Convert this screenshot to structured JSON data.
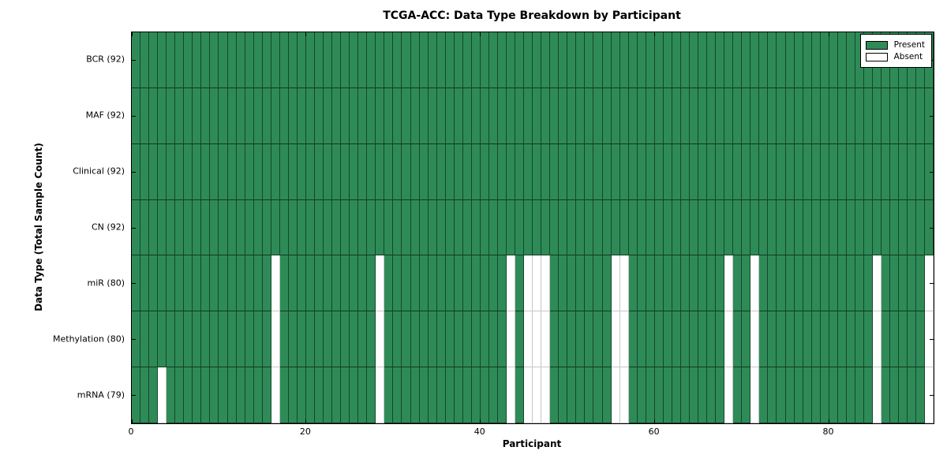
{
  "chart_data": {
    "type": "heatmap",
    "title": "TCGA-ACC: Data Type Breakdown by Participant",
    "xlabel": "Participant",
    "ylabel": "Data Type (Total Sample Count)",
    "x_range": [
      0,
      92
    ],
    "n_participants": 92,
    "x_ticks": [
      0,
      20,
      40,
      60,
      80
    ],
    "colors": {
      "present": "#2e8b57",
      "absent": "#ffffff"
    },
    "legend": [
      {
        "label": "Present",
        "color": "#2e8b57"
      },
      {
        "label": "Absent",
        "color": "#ffffff"
      }
    ],
    "legend_position": "upper right",
    "grid": false,
    "rows": [
      {
        "label": "BCR (92)",
        "total": 92,
        "absent_participants": []
      },
      {
        "label": "MAF (92)",
        "total": 92,
        "absent_participants": []
      },
      {
        "label": "Clinical (92)",
        "total": 92,
        "absent_participants": []
      },
      {
        "label": "CN (92)",
        "total": 92,
        "absent_participants": []
      },
      {
        "label": "miR (80)",
        "total": 80,
        "absent_participants": [
          16,
          28,
          43,
          45,
          46,
          47,
          55,
          56,
          68,
          71,
          85,
          91
        ]
      },
      {
        "label": "Methylation (80)",
        "total": 80,
        "absent_participants": [
          16,
          28,
          43,
          45,
          46,
          47,
          55,
          56,
          68,
          71,
          85,
          91
        ]
      },
      {
        "label": "mRNA (79)",
        "total": 79,
        "absent_participants": [
          3,
          16,
          28,
          43,
          45,
          46,
          47,
          55,
          56,
          68,
          71,
          85,
          91
        ]
      }
    ]
  }
}
